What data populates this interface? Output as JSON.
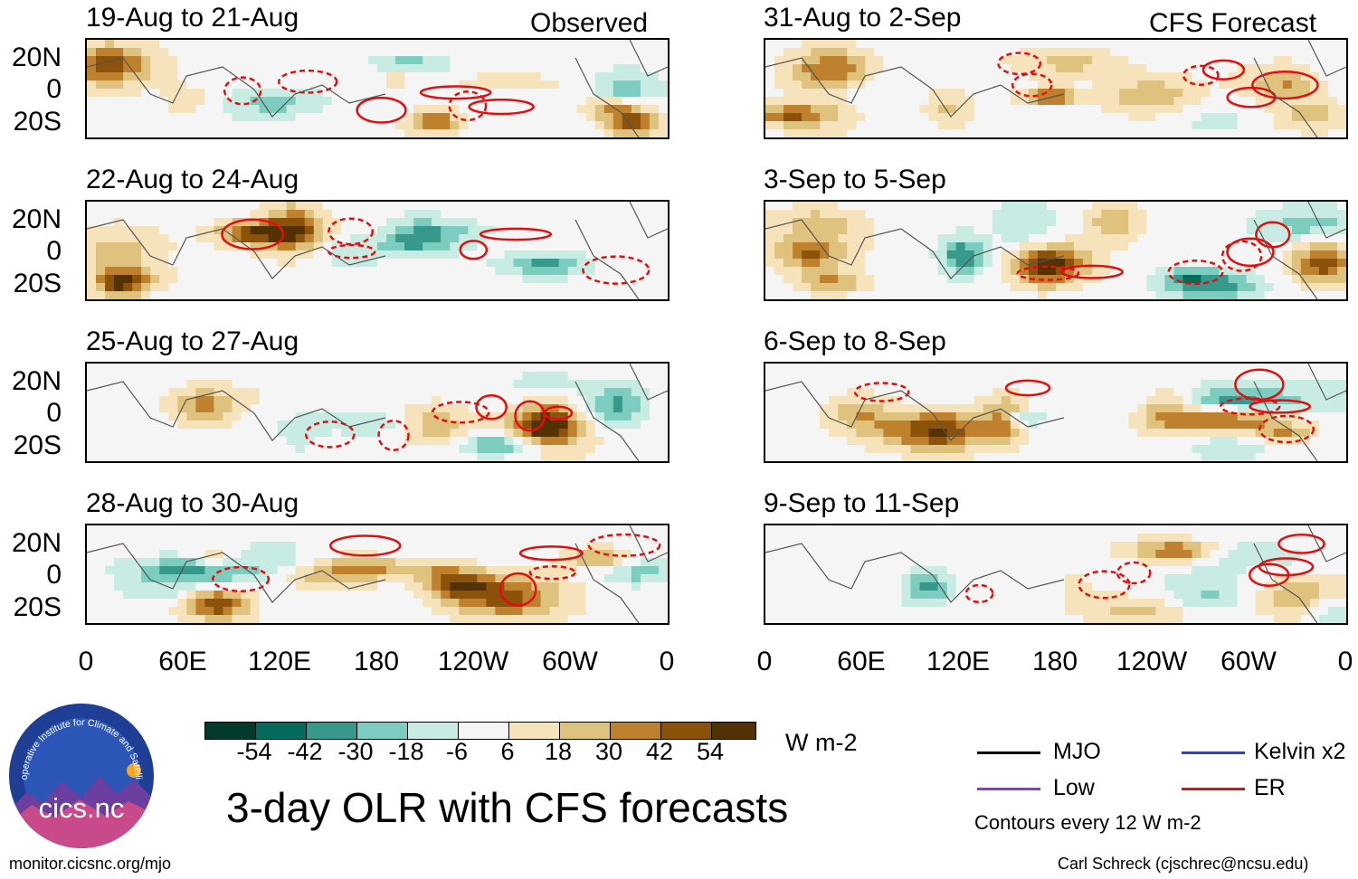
{
  "chart_data": {
    "type": "heatmap",
    "title": "3-day OLR with CFS forecasts",
    "units": "W m-2",
    "left_column_label": "Observed",
    "right_column_label": "CFS Forecast",
    "lat_ticks": [
      "20N",
      "0",
      "20S"
    ],
    "lon_ticks": [
      "0",
      "60E",
      "120E",
      "180",
      "120W",
      "60W",
      "0"
    ],
    "lat_range": [
      -30,
      30
    ],
    "lon_range": [
      0,
      360
    ],
    "panels": [
      {
        "column": "observed",
        "period": "19-Aug to 21-Aug",
        "seed": 3
      },
      {
        "column": "observed",
        "period": "22-Aug to 24-Aug",
        "seed": 7
      },
      {
        "column": "observed",
        "period": "25-Aug to 27-Aug",
        "seed": 11
      },
      {
        "column": "observed",
        "period": "28-Aug to 30-Aug",
        "seed": 17
      },
      {
        "column": "forecast",
        "period": "31-Aug to 2-Sep",
        "seed": 23
      },
      {
        "column": "forecast",
        "period": "3-Sep to 5-Sep",
        "seed": 29
      },
      {
        "column": "forecast",
        "period": "6-Sep to 8-Sep",
        "seed": 31
      },
      {
        "column": "forecast",
        "period": "9-Sep to 11-Sep",
        "seed": 37
      }
    ],
    "colorbar": {
      "labels": [
        "-54",
        "-42",
        "-30",
        "-18",
        "-6",
        "6",
        "18",
        "30",
        "42",
        "54"
      ],
      "colors": [
        "#003b2e",
        "#056b5d",
        "#37998c",
        "#7ccdbf",
        "#c8ece4",
        "#f5f5f5",
        "#f6e3bc",
        "#dfc27d",
        "#bf812d",
        "#8c510a",
        "#543005"
      ]
    },
    "contour_interval_text": "Contours every 12 W m-2",
    "legend": [
      {
        "name": "MJO",
        "color": "#000000"
      },
      {
        "name": "Kelvin x2",
        "color": "#2a3fd6"
      },
      {
        "name": "Low",
        "color": "#9b30e0"
      },
      {
        "name": "ER",
        "color": "#e01010"
      }
    ]
  },
  "logo": {
    "name": "cics.nc",
    "ring_text": "Cooperative Institute for Climate and Satellites"
  },
  "footer": {
    "left": "monitor.cicsnc.org/mjo",
    "right": "Carl Schreck (cjschrec@ncsu.edu)"
  }
}
